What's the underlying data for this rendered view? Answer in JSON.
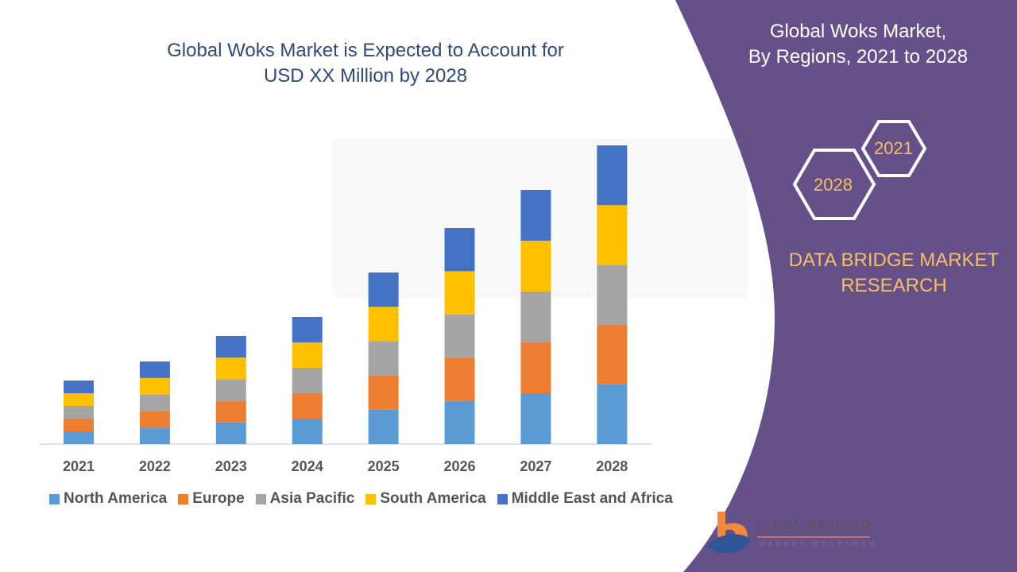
{
  "header": {
    "title_line1": "Global Woks Market is Expected to Account for",
    "title_line2": "USD XX Million by 2028"
  },
  "side_panel": {
    "title_line1": "Global Woks Market,",
    "title_line2": "By Regions, 2021 to 2028",
    "hex_start": "2021",
    "hex_end": "2028",
    "brand_line1": "DATA BRIDGE MARKET",
    "brand_line2": "RESEARCH",
    "panel_color": "#65508a",
    "accent_color": "#f5c060"
  },
  "logo": {
    "line1": "DATA BRIDGE",
    "line2": "MARKET RESEARCH"
  },
  "chart_data": {
    "type": "bar",
    "stacked": true,
    "title": "Global Woks Market is Expected to Account for USD XX Million by 2028",
    "categories": [
      "2021",
      "2022",
      "2023",
      "2024",
      "2025",
      "2026",
      "2027",
      "2028"
    ],
    "series": [
      {
        "name": "North America",
        "color": "#5b9bd5",
        "values": [
          1.0,
          1.3,
          1.7,
          2.0,
          2.7,
          3.4,
          4.0,
          4.7
        ]
      },
      {
        "name": "Europe",
        "color": "#ed7d31",
        "values": [
          1.0,
          1.3,
          1.7,
          2.0,
          2.7,
          3.4,
          4.0,
          4.7
        ]
      },
      {
        "name": "Asia Pacific",
        "color": "#a5a5a5",
        "values": [
          1.0,
          1.3,
          1.7,
          2.0,
          2.7,
          3.4,
          4.0,
          4.7
        ]
      },
      {
        "name": "South America",
        "color": "#ffc000",
        "values": [
          1.0,
          1.3,
          1.7,
          2.0,
          2.7,
          3.4,
          4.0,
          4.7
        ]
      },
      {
        "name": "Middle East and Africa",
        "color": "#4472c4",
        "values": [
          1.0,
          1.3,
          1.7,
          2.0,
          2.7,
          3.4,
          4.0,
          4.7
        ]
      }
    ],
    "xlabel": "",
    "ylabel": "",
    "y_axis_visible": false,
    "grid": false,
    "legend_position": "bottom"
  }
}
